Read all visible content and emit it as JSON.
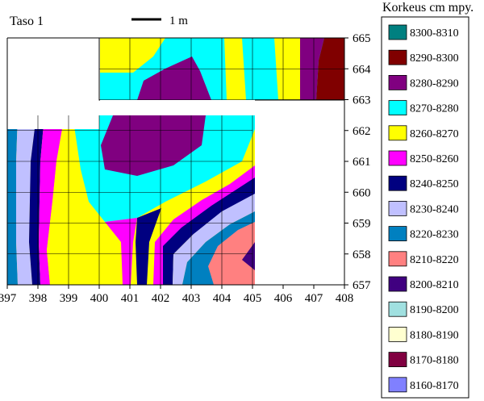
{
  "chart_data": {
    "type": "heatmap",
    "title": "Taso 1",
    "scale_label": "1 m",
    "legend_title": "Korkeus cm mpy.",
    "x_ticks": [
      "397",
      "398",
      "399",
      "400",
      "401",
      "402",
      "403",
      "404",
      "405",
      "406",
      "407",
      "408"
    ],
    "y_ticks": [
      "665",
      "664",
      "663",
      "662",
      "661",
      "660",
      "659",
      "658",
      "657"
    ],
    "xlim": [
      397,
      408
    ],
    "ylim": [
      657,
      665
    ],
    "legend": [
      {
        "label": "8300-8310",
        "color": "#008080"
      },
      {
        "label": "8290-8300",
        "color": "#800000"
      },
      {
        "label": "8280-8290",
        "color": "#800080"
      },
      {
        "label": "8270-8280",
        "color": "#00FFFF"
      },
      {
        "label": "8260-8270",
        "color": "#FFFF00"
      },
      {
        "label": "8250-8260",
        "color": "#FF00FF"
      },
      {
        "label": "8240-8250",
        "color": "#000080"
      },
      {
        "label": "8230-8240",
        "color": "#C0C0FF"
      },
      {
        "label": "8220-8230",
        "color": "#0080C0"
      },
      {
        "label": "8210-8220",
        "color": "#FF8080"
      },
      {
        "label": "8200-8210",
        "color": "#400080"
      },
      {
        "label": "8190-8200",
        "color": "#A0E0E0"
      },
      {
        "label": "8180-8190",
        "color": "#FFFFD0"
      },
      {
        "label": "8170-8180",
        "color": "#800040"
      },
      {
        "label": "8160-8170",
        "color": "#8080FF"
      }
    ],
    "zones": {
      "upper": {
        "x_range": [
          400,
          408
        ],
        "y_range": [
          663,
          665
        ],
        "bands": [
          "8270-8280",
          "8260-8270",
          "8270-8280",
          "8280-8290",
          "8270-8280",
          "8260-8270",
          "8270-8280",
          "8260-8270",
          "8280-8290",
          "8290-8300"
        ]
      },
      "lower": {
        "x_range": [
          397,
          405
        ],
        "y_range": [
          657,
          662.5
        ],
        "bands": [
          "8220-8230",
          "8230-8240",
          "8240-8250",
          "8250-8260",
          "8260-8270",
          "8270-8280",
          "8280-8290",
          "8260-8270",
          "8250-8260",
          "8240-8250",
          "8230-8240",
          "8220-8230",
          "8210-8220",
          "8200-8210"
        ]
      }
    }
  }
}
